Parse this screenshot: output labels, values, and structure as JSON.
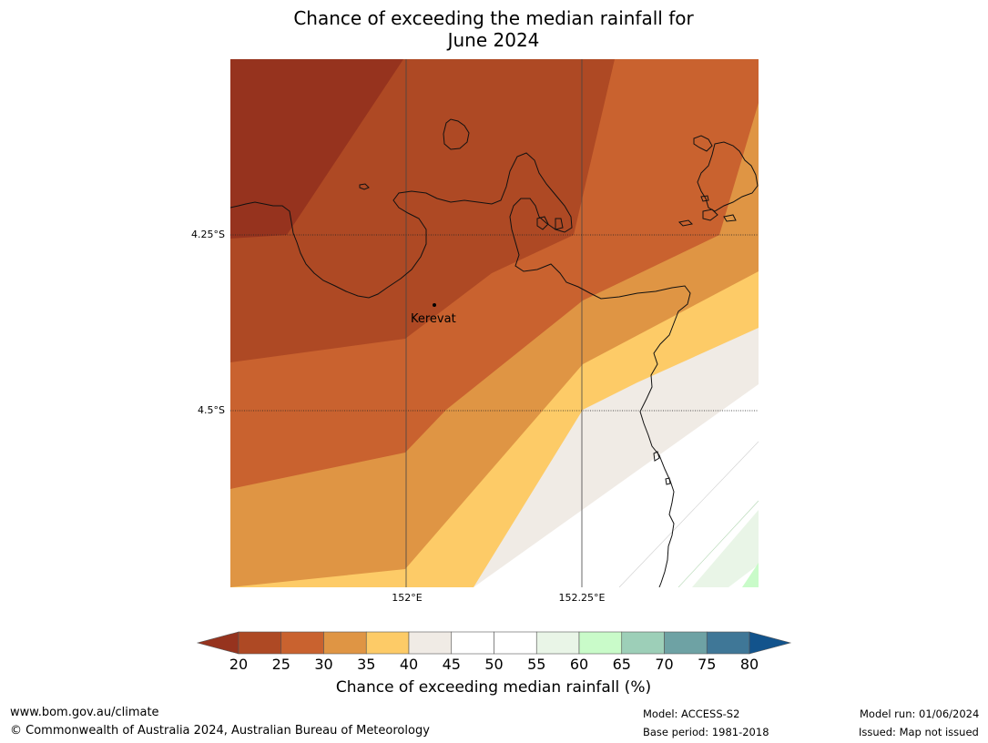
{
  "title_line1": "Chance of exceeding the median rainfall for",
  "title_line2": "June 2024",
  "map": {
    "lat_labels": [
      "4.25°S",
      "4.5°S"
    ],
    "lon_labels": [
      "152°E",
      "152.25°E"
    ],
    "place": "Kerevat"
  },
  "colorbar": {
    "title": "Chance of exceeding median rainfall (%)",
    "ticks": [
      "20",
      "25",
      "30",
      "35",
      "40",
      "45",
      "50",
      "55",
      "60",
      "65",
      "70",
      "75",
      "80"
    ],
    "colors": {
      "below_20": "#96331e",
      "20_25": "#ae4924",
      "25_30": "#c9622f",
      "30_35": "#df9544",
      "35_40": "#fdcb67",
      "40_45": "#f0ebe5",
      "45_50": "#ffffff",
      "50_55": "#ffffff",
      "55_60": "#e9f5e7",
      "60_65": "#c9fbc9",
      "65_70": "#9dcfb8",
      "70_75": "#6ea2a4",
      "75_80": "#3f7797",
      "above_80": "#12538c"
    }
  },
  "footer": {
    "website": "www.bom.gov.au/climate",
    "copyright": "© Commonwealth of Australia 2024, Australian Bureau of Meteorology",
    "model": "Model: ACCESS-S2",
    "base_period": "Base period: 1981-2018",
    "model_run": "Model run: 01/06/2024",
    "issued": "Issued: Map not issued"
  }
}
